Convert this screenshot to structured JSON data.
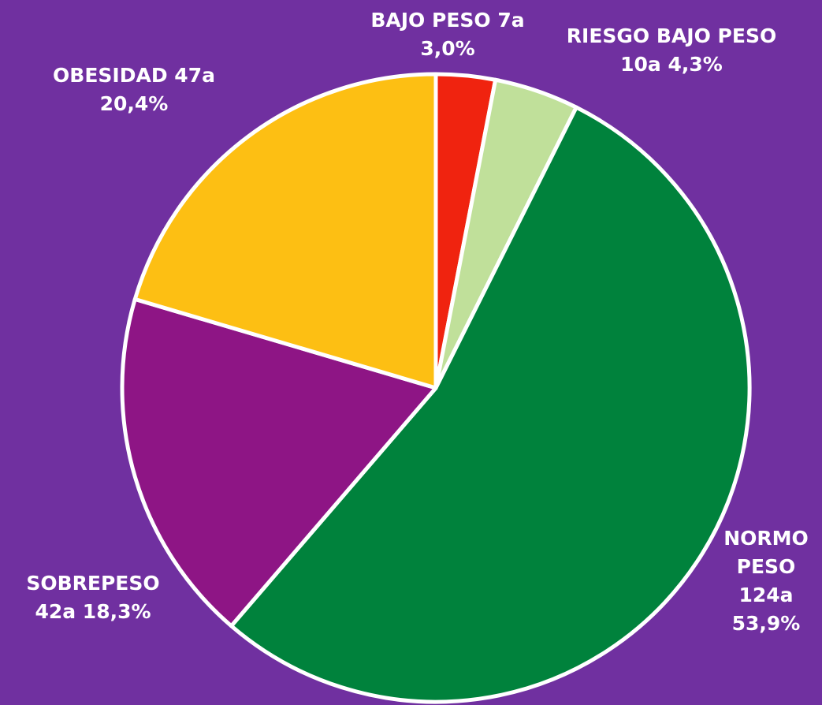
{
  "chart_data": {
    "type": "pie",
    "categories": [
      "BAJO PESO",
      "RIESGO BAJO PESO",
      "NORMO PESO",
      "SOBREPESO",
      "OBESIDAD"
    ],
    "values": [
      7,
      10,
      124,
      42,
      47
    ],
    "value_labels": [
      "7a 3,0%",
      "10a 4,3%",
      "124a 53,9%",
      "42a 18,3%",
      "47a 20,4%"
    ],
    "colors": [
      "#f0230f",
      "#c0e09a",
      "#00823c",
      "#8e1585",
      "#fdbf13"
    ]
  }
}
